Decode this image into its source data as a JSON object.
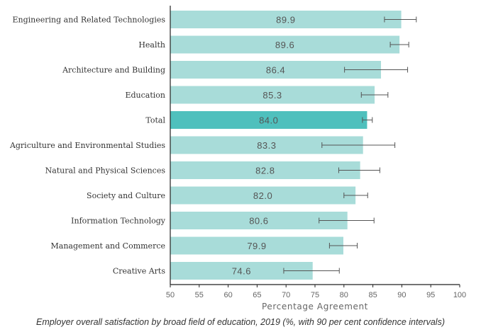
{
  "chart_data": {
    "type": "bar",
    "orientation": "horizontal",
    "categories": [
      "Engineering and Related Technologies",
      "Health",
      "Architecture and Building",
      "Education",
      "Total",
      "Agriculture and Environmental Studies",
      "Natural and Physical Sciences",
      "Society and Culture",
      "Information Technology",
      "Management and Commerce",
      "Creative Arts"
    ],
    "values": [
      89.9,
      89.6,
      86.4,
      85.3,
      84.0,
      83.3,
      82.8,
      82.0,
      80.6,
      79.9,
      74.6
    ],
    "value_labels": [
      "89.9",
      "89.6",
      "86.4",
      "85.3",
      "84.0",
      "83.3",
      "82.8",
      "82.0",
      "80.6",
      "79.9",
      "74.6"
    ],
    "error_low": [
      87.0,
      88.0,
      80.1,
      83.0,
      83.2,
      76.2,
      79.1,
      80.0,
      75.7,
      77.5,
      69.6
    ],
    "error_high": [
      92.5,
      91.2,
      91.0,
      87.6,
      84.9,
      88.8,
      86.2,
      84.1,
      85.2,
      82.3,
      79.2
    ],
    "highlight_category": "Total",
    "xlabel": "Percentage Agreement",
    "xlim": [
      50,
      100
    ],
    "xticks": [
      "50",
      "55",
      "60",
      "65",
      "70",
      "75",
      "80",
      "85",
      "90",
      "95",
      "100"
    ],
    "grid": false,
    "legend": "none",
    "colors": {
      "bar": "#a8dcd9",
      "highlight": "#4fc0bd",
      "error_bar": "#555555"
    }
  },
  "caption": "Employer overall satisfaction by broad field of education, 2019 (%, with 90 per cent confidence intervals)"
}
